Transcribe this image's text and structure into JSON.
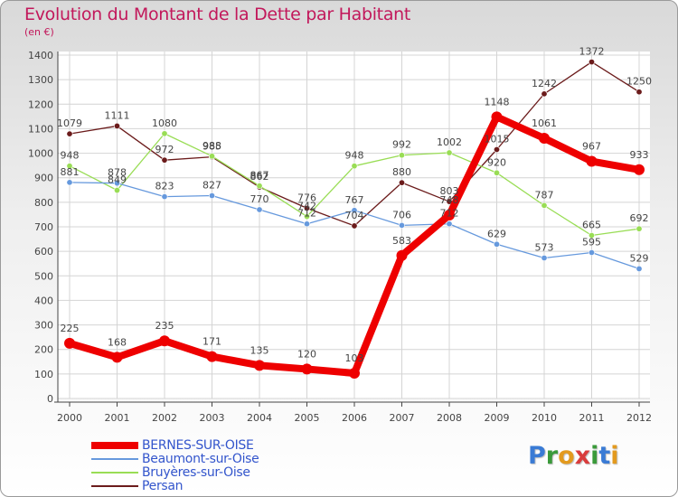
{
  "chart_data": {
    "type": "line",
    "title": "Evolution du Montant de la Dette par Habitant",
    "subtitle": "(en €)",
    "xlabel": "",
    "ylabel": "",
    "ylim": [
      0,
      1400
    ],
    "yticks": [
      0,
      100,
      200,
      300,
      400,
      500,
      600,
      700,
      800,
      900,
      1000,
      1100,
      1200,
      1300,
      1400
    ],
    "grid": true,
    "legend_position": "bottom-left",
    "categories": [
      "2000",
      "2001",
      "2002",
      "2003",
      "2004",
      "2005",
      "2006",
      "2007",
      "2008",
      "2009",
      "2010",
      "2011",
      "2012"
    ],
    "series": [
      {
        "name": "Persan",
        "color": "#6b1b1b",
        "values": [
          1079,
          1111,
          972,
          985,
          862,
          776,
          704,
          880,
          803,
          1015,
          1242,
          1372,
          1250
        ]
      },
      {
        "name": "Bruyères-sur-Oise",
        "color": "#99dd55",
        "values": [
          948,
          849,
          1080,
          988,
          867,
          742,
          948,
          992,
          1002,
          920,
          787,
          665,
          692
        ]
      },
      {
        "name": "Beaumont-sur-Oise",
        "color": "#6699dd",
        "values": [
          881,
          878,
          823,
          827,
          770,
          712,
          767,
          706,
          712,
          629,
          573,
          595,
          529
        ]
      },
      {
        "name": "BERNES-SUR-OISE",
        "color": "#ee0000",
        "values": [
          225,
          168,
          235,
          171,
          135,
          120,
          103,
          583,
          748,
          1148,
          1061,
          967,
          933
        ]
      }
    ]
  },
  "legend": {
    "items": [
      {
        "label": "BERNES-SUR-OISE",
        "color": "#ee0000"
      },
      {
        "label": "Beaumont-sur-Oise",
        "color": "#6699dd"
      },
      {
        "label": "Bruyères-sur-Oise",
        "color": "#99dd55"
      },
      {
        "label": "Persan",
        "color": "#6b1b1b"
      }
    ]
  },
  "logo": {
    "letters": [
      "P",
      "r",
      "o",
      "x",
      "i",
      "t",
      "i"
    ]
  }
}
